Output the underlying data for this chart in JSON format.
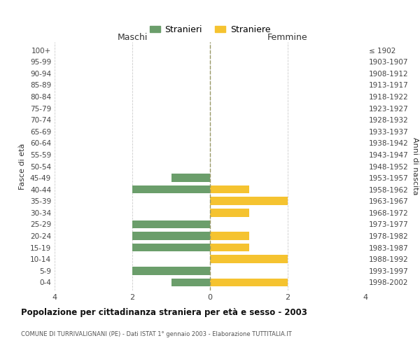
{
  "age_groups": [
    "100+",
    "95-99",
    "90-94",
    "85-89",
    "80-84",
    "75-79",
    "70-74",
    "65-69",
    "60-64",
    "55-59",
    "50-54",
    "45-49",
    "40-44",
    "35-39",
    "30-34",
    "25-29",
    "20-24",
    "15-19",
    "10-14",
    "5-9",
    "0-4"
  ],
  "birth_years": [
    "≤ 1902",
    "1903-1907",
    "1908-1912",
    "1913-1917",
    "1918-1922",
    "1923-1927",
    "1928-1932",
    "1933-1937",
    "1938-1942",
    "1943-1947",
    "1948-1952",
    "1953-1957",
    "1958-1962",
    "1963-1967",
    "1968-1972",
    "1973-1977",
    "1978-1982",
    "1983-1987",
    "1988-1992",
    "1993-1997",
    "1998-2002"
  ],
  "maschi": [
    0,
    0,
    0,
    0,
    0,
    0,
    0,
    0,
    0,
    0,
    0,
    1,
    2,
    0,
    0,
    2,
    2,
    2,
    0,
    2,
    1
  ],
  "femmine": [
    0,
    0,
    0,
    0,
    0,
    0,
    0,
    0,
    0,
    0,
    0,
    0,
    1,
    2,
    1,
    0,
    1,
    1,
    2,
    0,
    2
  ],
  "color_maschi": "#6b9e6b",
  "color_femmine": "#f5c330",
  "title": "Popolazione per cittadinanza straniera per età e sesso - 2003",
  "subtitle": "COMUNE DI TURRIVALIGNANI (PE) - Dati ISTAT 1° gennaio 2003 - Elaborazione TUTTITALIA.IT",
  "xlabel_left": "Maschi",
  "xlabel_right": "Femmine",
  "ylabel_left": "Fasce di età",
  "ylabel_right": "Anni di nascita",
  "legend_maschi": "Stranieri",
  "legend_femmine": "Straniere",
  "xlim": 4,
  "background_color": "#ffffff",
  "grid_color": "#cccccc"
}
